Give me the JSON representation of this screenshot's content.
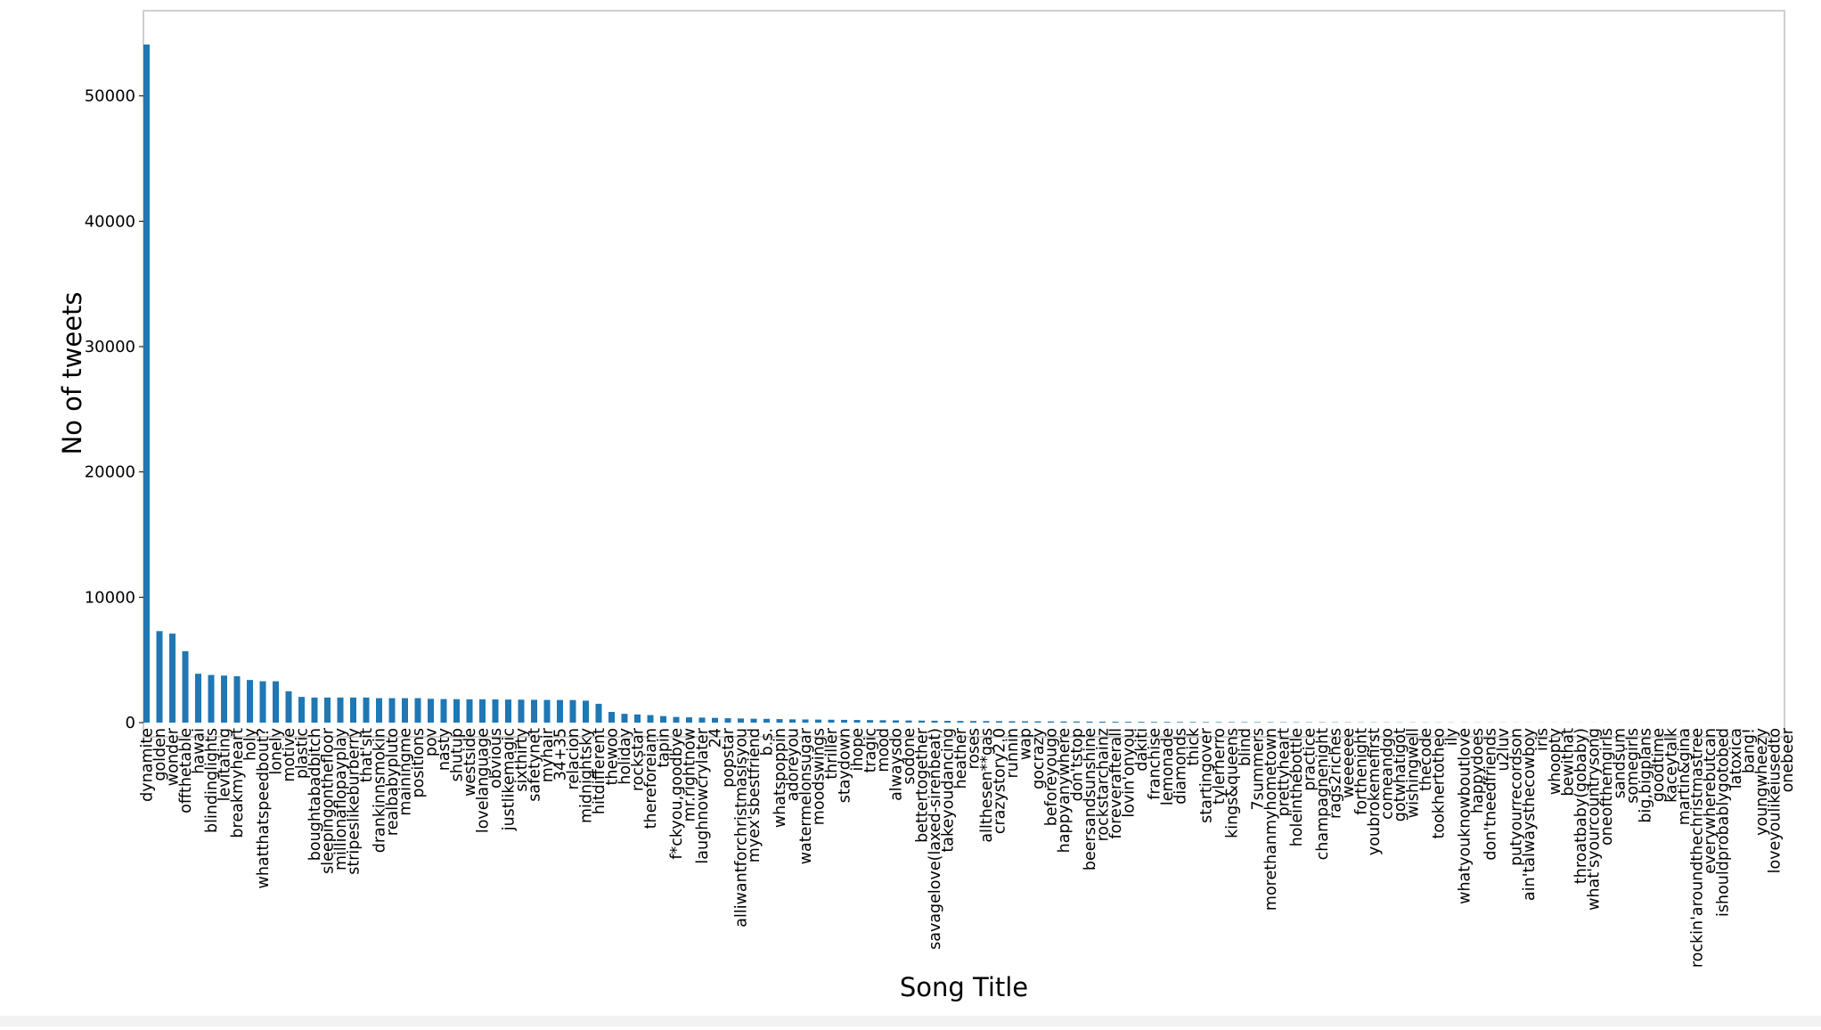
{
  "chart_data": {
    "type": "bar",
    "title": "",
    "xlabel": "Song Title",
    "ylabel": "No of tweets",
    "ylim": [
      0,
      56800
    ],
    "yticks": [
      0,
      10000,
      20000,
      30000,
      40000,
      50000
    ],
    "grid": false,
    "legend": "none",
    "bar_color": "#1f77b4",
    "categories": [
      "dynamite",
      "golden",
      "wonder",
      "offthetable",
      "hawai",
      "blindinglights",
      "levitating",
      "breakmyheart",
      "holy",
      "whatthatspeedbout?",
      "lonely",
      "motive",
      "plastic",
      "boughtabadbitch",
      "sleepingonthefloor",
      "millionaflopayplay",
      "stripeslikeburberry",
      "that'sit",
      "drankinnsmokin",
      "realbabypluto",
      "mainingme",
      "positions",
      "pov",
      "nasty",
      "shutup",
      "westside",
      "lovelanguage",
      "obvious",
      "justlikemagic",
      "sixthirty",
      "safetynet",
      "myhair",
      "34+35",
      "relacion",
      "midnightsky",
      "hitdifferent",
      "thewoo",
      "holiday",
      "rockstar",
      "thereforeiam",
      "tapin",
      "f*ckyou,goodbye",
      "mr.rightnow",
      "laughnowcrylater",
      "24",
      "popstar",
      "alliwantforchristmasisyou",
      "myex'sbestfriend",
      "b.s.",
      "whatspoppin",
      "adoreyou",
      "watermelonsugar",
      "moodswings",
      "thriller",
      "staydown",
      "ihope",
      "tragic",
      "mood",
      "alwaysdo",
      "sodone",
      "bettertogether",
      "savagelove(laxed-sirenbeat)",
      "takeyoudancing",
      "heather",
      "roses",
      "allthesen**gas",
      "crazystory2.0",
      "runnin",
      "wap",
      "gocrazy",
      "beforeyougo",
      "happyanywhere",
      "don'tstop",
      "beersandsunshine",
      "rockstarchainz",
      "foreverafterall",
      "lovin'onyou",
      "dakiti",
      "franchise",
      "lemonade",
      "diamonds",
      "thick",
      "startingover",
      "tylerherro",
      "kings&queens",
      "blind",
      "7summers",
      "morethanmyhometown",
      "prettyheart",
      "holeinthebottle",
      "practice",
      "champagnenight",
      "rags2riches",
      "weeeeee",
      "forthenight",
      "youbrokemefirst",
      "comeandgo",
      "gotwhatigot",
      "wishingwell",
      "thecode",
      "tookhertotheo",
      "ily",
      "whatyouknowboutlove",
      "happydoes",
      "don'tneedfriends",
      "u2luv",
      "putyourrecordson",
      "ain'talwaysthecowboy",
      "iris",
      "whoopty",
      "bewithat",
      "throatbaby(gobaby)",
      "what'syourcountrysong",
      "oneofthemgirls",
      "sandsum",
      "somegirls",
      "big,bigplans",
      "goodtime",
      "kaceytalk",
      "martin&gina",
      "rockin'aroundthechristmastree",
      "everywherebutcan",
      "ishouldprobablygotobed",
      "latoxica",
      "bang!",
      "youngwheezy",
      "loveyoulikeiusedto",
      "onebeer"
    ],
    "values": [
      54100,
      7300,
      7100,
      5700,
      3900,
      3800,
      3750,
      3700,
      3400,
      3300,
      3300,
      2500,
      2050,
      2000,
      2000,
      2000,
      2000,
      2000,
      1950,
      1950,
      1950,
      1950,
      1900,
      1880,
      1870,
      1860,
      1860,
      1850,
      1840,
      1830,
      1820,
      1810,
      1800,
      1800,
      1750,
      1500,
      850,
      700,
      650,
      600,
      520,
      450,
      420,
      400,
      380,
      350,
      330,
      310,
      300,
      280,
      260,
      250,
      240,
      230,
      220,
      210,
      200,
      190,
      180,
      170,
      160,
      150,
      140,
      130,
      125,
      120,
      115,
      110,
      105,
      100,
      95,
      90,
      85,
      80,
      75,
      70,
      65,
      60,
      57,
      54,
      51,
      48,
      45,
      42,
      40,
      38,
      36,
      34,
      32,
      30,
      28,
      26,
      24,
      22,
      20,
      19,
      18,
      17,
      16,
      15,
      14,
      13,
      12,
      11,
      10,
      10,
      9,
      9,
      8,
      8,
      7,
      7,
      6,
      6,
      5,
      5,
      5,
      4,
      4,
      4,
      3,
      3,
      3,
      2,
      2,
      2,
      2,
      1
    ]
  }
}
